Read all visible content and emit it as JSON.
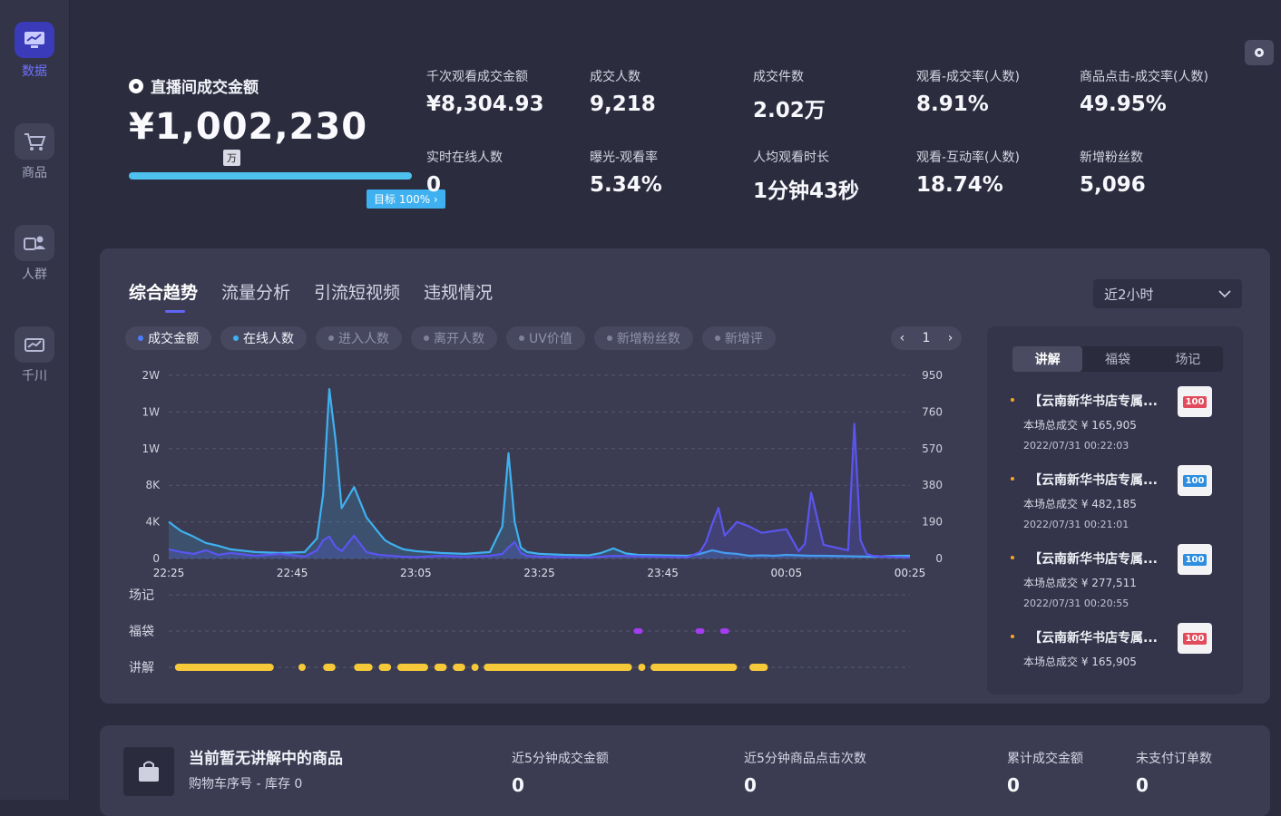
{
  "sidebar": {
    "items": [
      {
        "label": "数据",
        "icon": "data-screen-icon"
      },
      {
        "label": "商品",
        "icon": "cart-icon"
      },
      {
        "label": "人群",
        "icon": "people-icon"
      },
      {
        "label": "千川",
        "icon": "ads-icon"
      }
    ]
  },
  "hero": {
    "title": "直播间成交金额",
    "value": "¥1,002,230",
    "unit_badge": "万",
    "target": "目标 100%  ›",
    "progress": 1.0
  },
  "metrics": [
    {
      "label": "千次观看成交金额",
      "value": "¥8,304.93"
    },
    {
      "label": "成交人数",
      "value": "9,218"
    },
    {
      "label": "成交件数",
      "value": "2.02万"
    },
    {
      "label": "观看-成交率(人数)",
      "value": "8.91%"
    },
    {
      "label": "商品点击-成交率(人数)",
      "value": "49.95%"
    },
    {
      "label": "实时在线人数",
      "value": "0"
    },
    {
      "label": "曝光-观看率",
      "value": "5.34%"
    },
    {
      "label": "人均观看时长",
      "value": "1分钟43秒"
    },
    {
      "label": "观看-互动率(人数)",
      "value": "18.74%"
    },
    {
      "label": "新增粉丝数",
      "value": "5,096"
    }
  ],
  "trend": {
    "tabs": [
      "综合趋势",
      "流量分析",
      "引流短视频",
      "违规情况"
    ],
    "range": "近2小时",
    "filters": [
      {
        "label": "成交金额",
        "on": true,
        "color": "#4a7cff"
      },
      {
        "label": "在线人数",
        "on": true,
        "color": "#3fb1f0"
      },
      {
        "label": "进入人数",
        "on": false
      },
      {
        "label": "离开人数",
        "on": false
      },
      {
        "label": "UV价值",
        "on": false
      },
      {
        "label": "新增粉丝数",
        "on": false
      },
      {
        "label": "新增评",
        "on": false
      }
    ],
    "page": "1",
    "prev": "‹",
    "next": "›"
  },
  "chart_data": {
    "type": "line",
    "x": [
      "22:25",
      "22:45",
      "23:05",
      "23:25",
      "23:45",
      "00:05",
      "00:25"
    ],
    "y_left_ticks": [
      "0",
      "4K",
      "8K",
      "1W",
      "1W",
      "2W"
    ],
    "y_right_ticks": [
      "0",
      "190",
      "380",
      "570",
      "760",
      "950"
    ],
    "ylim_left": [
      0,
      20000
    ],
    "ylim_right": [
      0,
      950
    ],
    "grid": true,
    "series": [
      {
        "axis": "left",
        "color": "#3fb1f0",
        "x": [
          0,
          2,
          4,
          6,
          8,
          10,
          14,
          18,
          22,
          24,
          25,
          26,
          27,
          28,
          30,
          32,
          34,
          35,
          36,
          37,
          38,
          40,
          44,
          48,
          52,
          54,
          55,
          56,
          57,
          58,
          60,
          64,
          68,
          70,
          72,
          74,
          76,
          80,
          84,
          86,
          88,
          90,
          92,
          94,
          96,
          98,
          100,
          102,
          104,
          106,
          110,
          114,
          118,
          120
        ],
        "y": [
          4000,
          3000,
          2400,
          1700,
          1400,
          1000,
          700,
          600,
          700,
          2200,
          7000,
          18500,
          13000,
          5500,
          7800,
          4500,
          2800,
          2000,
          1600,
          1300,
          1000,
          800,
          600,
          500,
          700,
          3500,
          11500,
          4000,
          1200,
          700,
          500,
          400,
          350,
          600,
          1100,
          550,
          400,
          350,
          300,
          500,
          900,
          600,
          500,
          300,
          350,
          300,
          400,
          350,
          300,
          300,
          250,
          200,
          300,
          300
        ]
      },
      {
        "axis": "left",
        "color": "#5b55f0",
        "x": [
          0,
          2,
          4,
          6,
          8,
          10,
          14,
          18,
          22,
          24,
          25,
          26,
          27,
          28,
          30,
          32,
          34,
          36,
          38,
          40,
          44,
          48,
          52,
          54,
          55,
          56,
          57,
          58,
          60,
          64,
          68,
          72,
          76,
          80,
          84,
          86,
          87,
          88,
          89,
          90,
          92,
          94,
          96,
          98,
          100,
          101,
          102,
          103,
          104,
          106,
          108,
          110,
          111,
          112,
          113,
          114,
          116,
          118,
          120
        ],
        "y": [
          1000,
          700,
          500,
          900,
          400,
          600,
          300,
          500,
          200,
          900,
          2000,
          2400,
          1300,
          800,
          2500,
          700,
          400,
          300,
          200,
          150,
          300,
          200,
          300,
          500,
          1200,
          1800,
          600,
          300,
          200,
          150,
          100,
          300,
          250,
          200,
          150,
          700,
          1800,
          3800,
          5500,
          2500,
          4000,
          3500,
          2800,
          3000,
          3200,
          2000,
          800,
          1600,
          7200,
          1500,
          1200,
          900,
          14700,
          2000,
          500,
          300,
          200,
          150,
          100
        ]
      }
    ],
    "events": {
      "rows": [
        "场记",
        "福袋",
        "讲解"
      ],
      "fudai_x": [
        76,
        86,
        90
      ],
      "jiangjie_ranges": [
        [
          1,
          17
        ],
        [
          21,
          22
        ],
        [
          25,
          27
        ],
        [
          30,
          33
        ],
        [
          34,
          36
        ],
        [
          37,
          42
        ],
        [
          43,
          45
        ],
        [
          46,
          48
        ],
        [
          49,
          50
        ],
        [
          51,
          75
        ],
        [
          76,
          77
        ],
        [
          78,
          92
        ],
        [
          94,
          97
        ]
      ]
    }
  },
  "right_panel": {
    "tabs": [
      "讲解",
      "福袋",
      "场记"
    ],
    "items": [
      {
        "title": "【云南新华书店专属...",
        "sub": "本场总成交 ¥ 165,905",
        "time": "2022/07/31 00:22:03",
        "thumb": "100",
        "thumb_color": "red"
      },
      {
        "title": "【云南新华书店专属...",
        "sub": "本场总成交 ¥ 482,185",
        "time": "2022/07/31 00:21:01",
        "thumb": "100",
        "thumb_color": "blue"
      },
      {
        "title": "【云南新华书店专属...",
        "sub": "本场总成交 ¥ 277,511",
        "time": "2022/07/31 00:20:55",
        "thumb": "100",
        "thumb_color": "blue"
      },
      {
        "title": "【云南新华书店专属...",
        "sub": "本场总成交 ¥ 165,905",
        "time": "",
        "thumb": "100",
        "thumb_color": "red"
      }
    ]
  },
  "bottom": {
    "title": "当前暂无讲解中的商品",
    "sub": "购物车序号 -    库存 0",
    "metrics": [
      {
        "label": "近5分钟成交金额",
        "value": "0"
      },
      {
        "label": "近5分钟商品点击次数",
        "value": "0"
      },
      {
        "label": "累计成交金额",
        "value": "0"
      },
      {
        "label": "未支付订单数",
        "value": "0"
      }
    ]
  }
}
